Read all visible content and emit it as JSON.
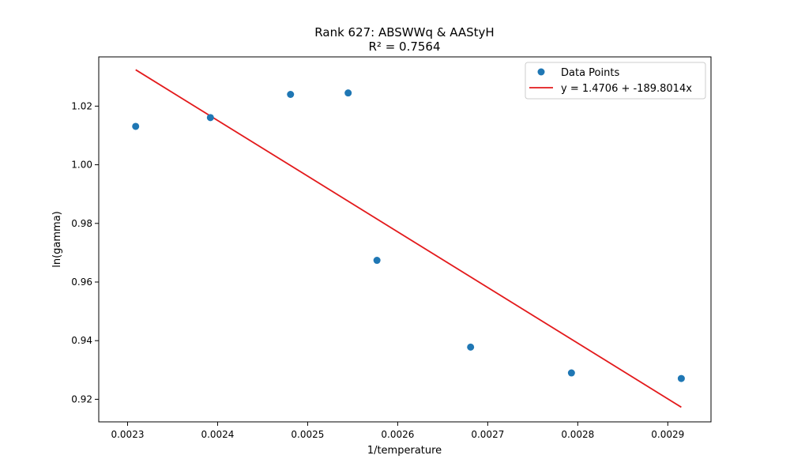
{
  "chart_data": {
    "type": "scatter",
    "title": "Rank 627: ABSWWq & AAStyH",
    "subtitle": "R² = 0.7564",
    "xlabel": "1/temperature",
    "ylabel": "ln(gamma)",
    "xlim": [
      0.002268,
      0.002948
    ],
    "ylim": [
      0.9123,
      1.0368
    ],
    "xticks": [
      0.0023,
      0.0024,
      0.0025,
      0.0026,
      0.0027,
      0.0028,
      0.0029
    ],
    "xtick_labels": [
      "0.0023",
      "0.0024",
      "0.0025",
      "0.0026",
      "0.0027",
      "0.0028",
      "0.0029"
    ],
    "yticks": [
      0.92,
      0.94,
      0.96,
      0.98,
      1.0,
      1.02
    ],
    "ytick_labels": [
      "0.92",
      "0.94",
      "0.96",
      "0.98",
      "1.00",
      "1.02"
    ],
    "grid": false,
    "legend_position": "top-right",
    "series": [
      {
        "name": "Data Points",
        "kind": "scatter",
        "color": "#1f77b4",
        "x": [
          0.002309,
          0.002392,
          0.002481,
          0.002545,
          0.002577,
          0.002681,
          0.002793,
          0.002915
        ],
        "y": [
          1.0131,
          1.0161,
          1.024,
          1.0245,
          0.9674,
          0.9378,
          0.929,
          0.9271
        ]
      },
      {
        "name": "y = 1.4706 + -189.8014x",
        "kind": "line",
        "color": "#e31a1c",
        "x": [
          0.002309,
          0.002915
        ],
        "y": [
          1.0324,
          0.9173
        ]
      }
    ]
  }
}
